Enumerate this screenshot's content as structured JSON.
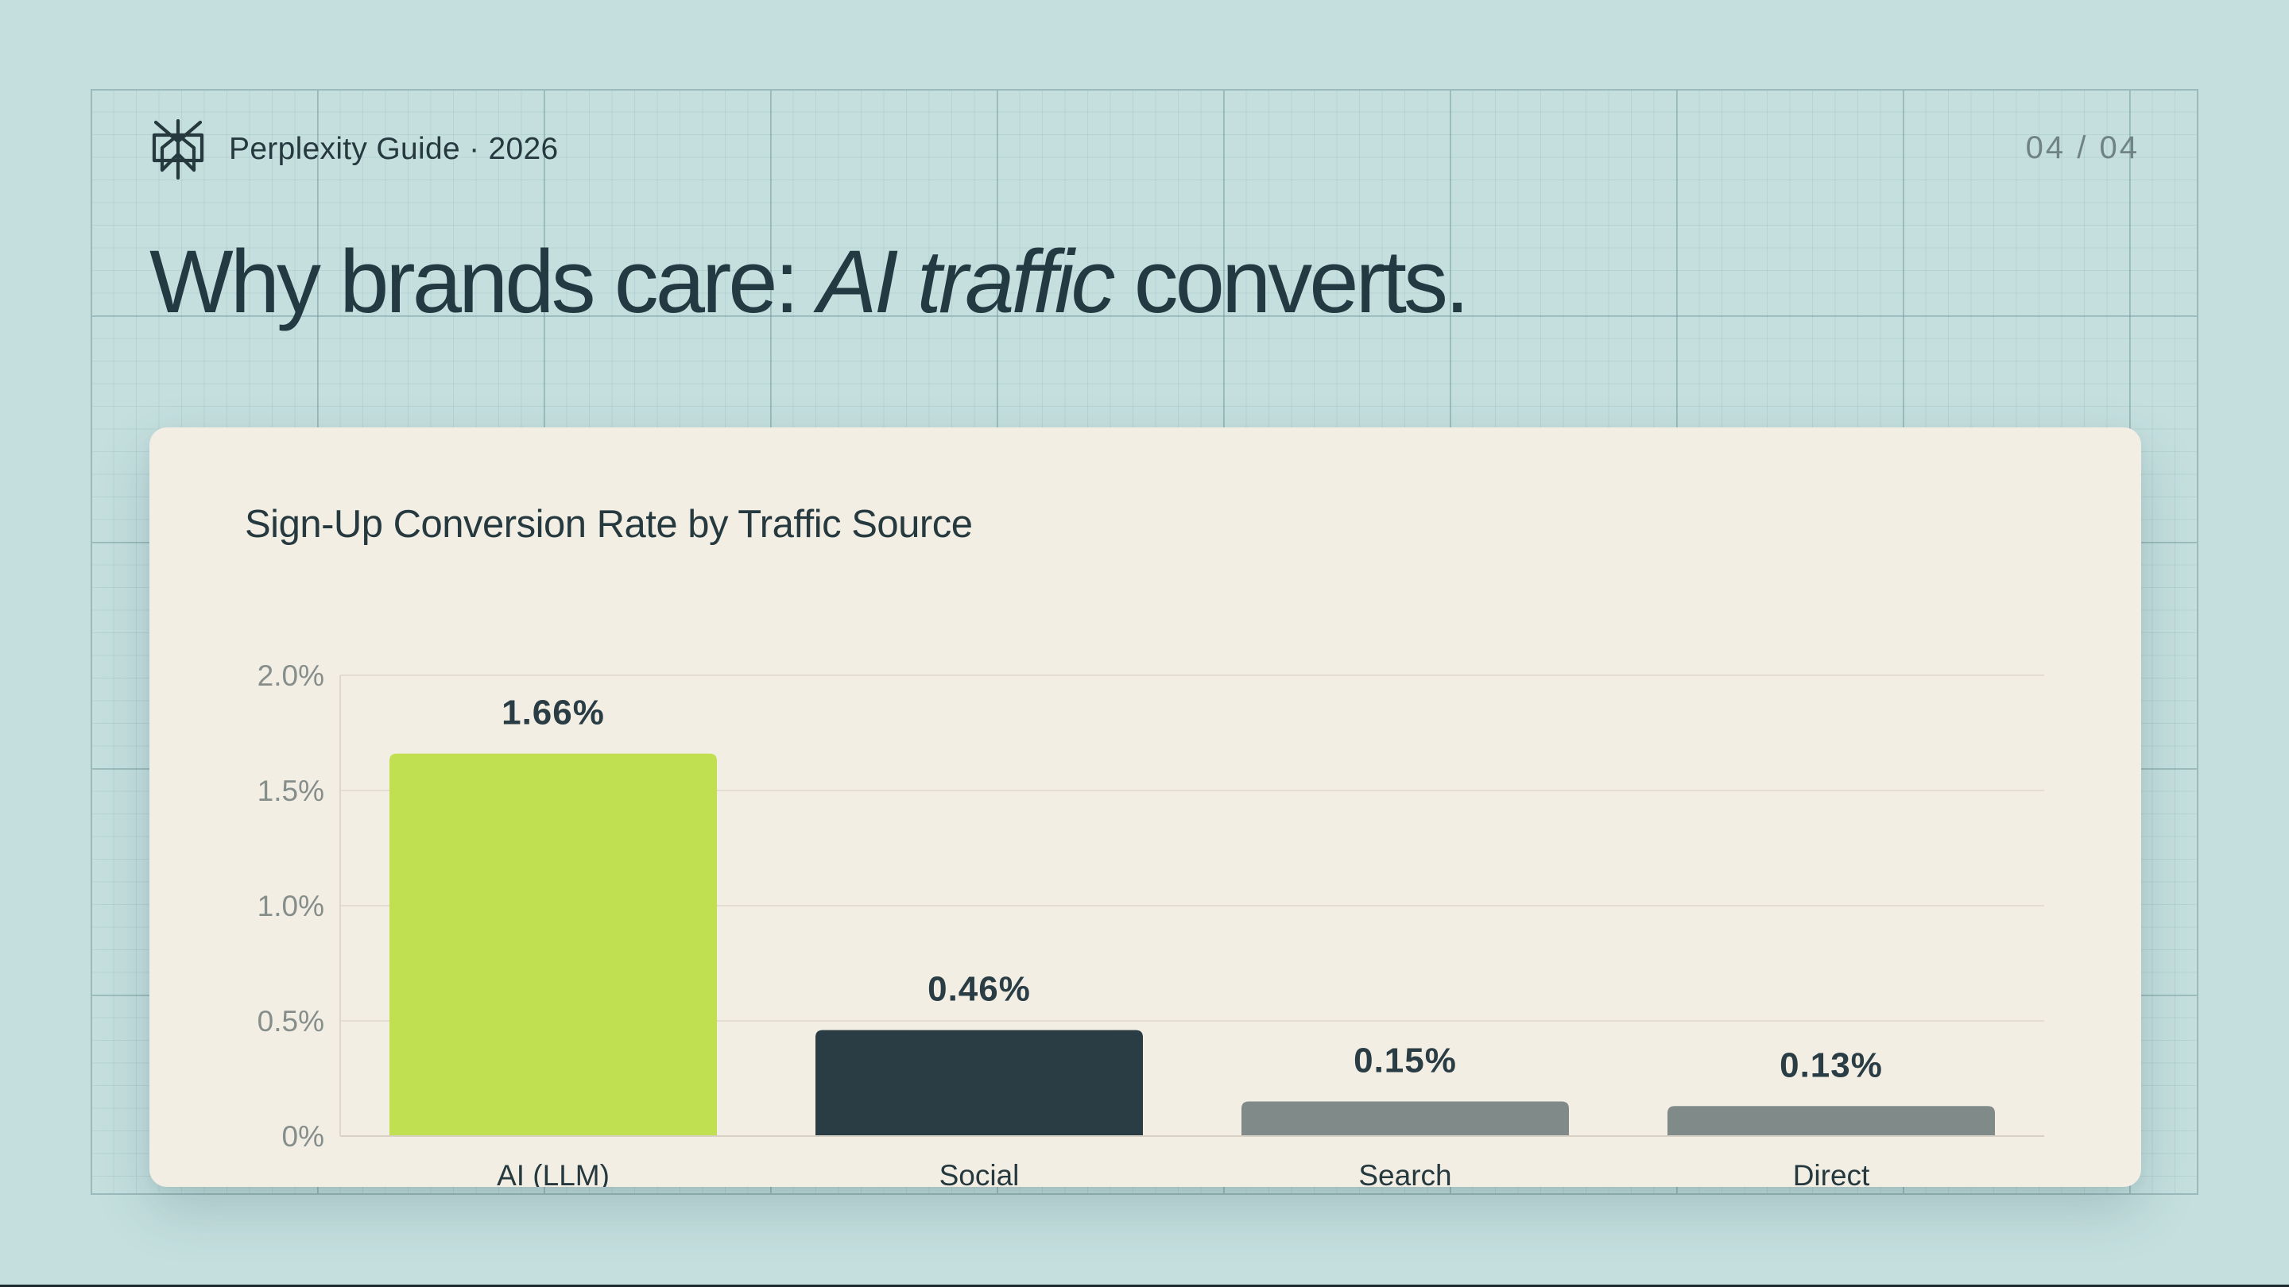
{
  "header": {
    "brand": "Perplexity Guide · 2026",
    "page_indicator": "04 / 04"
  },
  "headline": {
    "before": "Why brands care: ",
    "emphasis": "AI traffic",
    "after": " converts."
  },
  "icons": {
    "logo": "perplexity-logo-icon"
  },
  "colors": {
    "background": "#c5dfdf",
    "card": "#f2eee4",
    "text": "#25393f",
    "accent": "#c0e051",
    "dark": "#2a3d45",
    "muted": "#808b89"
  },
  "chart_data": {
    "type": "bar",
    "title": "Sign-Up Conversion Rate by Traffic Source",
    "xlabel": "",
    "ylabel": "",
    "categories": [
      "AI (LLM)",
      "Social",
      "Search",
      "Direct"
    ],
    "values": [
      1.66,
      0.46,
      0.15,
      0.13
    ],
    "value_labels": [
      "1.66%",
      "0.46%",
      "0.15%",
      "0.13%"
    ],
    "bar_colors": [
      "#c0e051",
      "#2a3d45",
      "#808b89",
      "#808b89"
    ],
    "ylim": [
      0,
      2.0
    ],
    "y_ticks": [
      0,
      0.5,
      1.0,
      1.5,
      2.0
    ],
    "y_tick_labels": [
      "0%",
      "0.5%",
      "1.0%",
      "1.5%",
      "2.0%"
    ],
    "grid": true,
    "legend": "none"
  }
}
